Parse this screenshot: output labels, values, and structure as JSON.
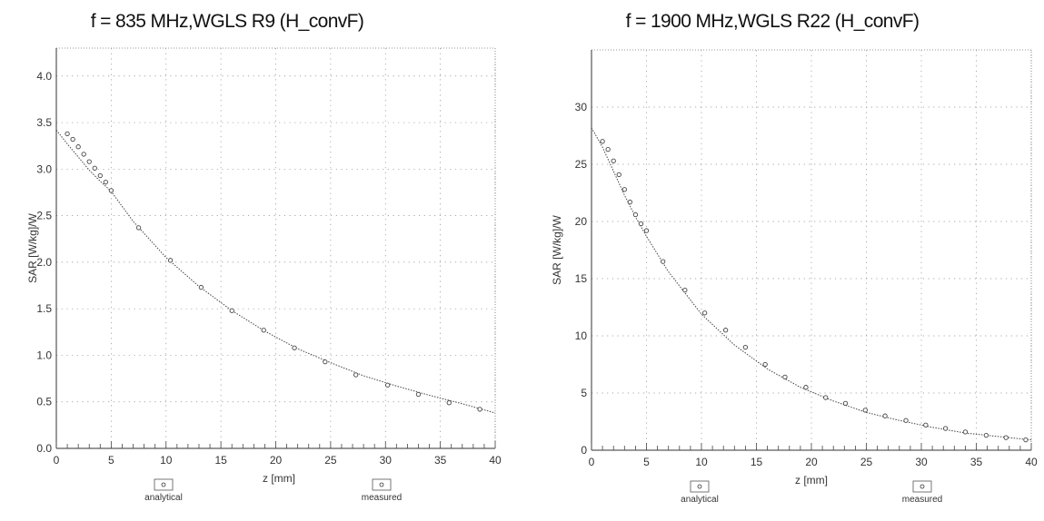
{
  "chart_data": [
    {
      "type": "line",
      "title": "f = 835 MHz,WGLS R9 (H_convF)",
      "xlabel": "z [mm]",
      "ylabel": "SAR [W/kg]/W",
      "xlim": [
        0,
        40
      ],
      "ylim": [
        0,
        4.3
      ],
      "xticks": [
        0,
        5,
        10,
        15,
        20,
        25,
        30,
        35,
        40
      ],
      "yticks": [
        0.0,
        0.5,
        1.0,
        1.5,
        2.0,
        2.5,
        3.0,
        3.5,
        4.0
      ],
      "ytick_labels": [
        "0.0",
        "0.5",
        "1.0",
        "1.5",
        "2.0",
        "2.5",
        "3.0",
        "3.5",
        "4.0"
      ],
      "xtick_labels": [
        "0",
        "5",
        "10",
        "15",
        "20",
        "25",
        "30",
        "35",
        "40"
      ],
      "grid": true,
      "series": [
        {
          "name": "analytical",
          "x": [
            0,
            1,
            2,
            3,
            4,
            5,
            7,
            10,
            13,
            16,
            19,
            22,
            25,
            28,
            31,
            34,
            37,
            40
          ],
          "values": [
            3.42,
            3.27,
            3.13,
            2.99,
            2.87,
            2.76,
            2.44,
            2.05,
            1.74,
            1.48,
            1.26,
            1.07,
            0.92,
            0.78,
            0.67,
            0.57,
            0.48,
            0.38
          ]
        },
        {
          "name": "measured",
          "x": [
            1.0,
            1.5,
            2.0,
            2.5,
            3.0,
            3.5,
            4.0,
            4.5,
            5.0,
            7.5,
            10.4,
            13.2,
            16.0,
            18.9,
            21.7,
            24.5,
            27.3,
            30.2,
            33.0,
            35.8,
            38.6
          ],
          "values": [
            3.38,
            3.32,
            3.24,
            3.16,
            3.08,
            3.01,
            2.93,
            2.86,
            2.77,
            2.37,
            2.02,
            1.73,
            1.48,
            1.27,
            1.08,
            0.93,
            0.79,
            0.68,
            0.58,
            0.49,
            0.42
          ]
        }
      ],
      "legend": {
        "placement": "bottom",
        "items": [
          "analytical",
          "measured"
        ]
      }
    },
    {
      "type": "line",
      "title": "f = 1900 MHz,WGLS R22 (H_convF)",
      "xlabel": "z [mm]",
      "ylabel": "SAR [W/kg]/W",
      "xlim": [
        0,
        40
      ],
      "ylim": [
        0,
        35
      ],
      "xticks": [
        0,
        5,
        10,
        15,
        20,
        25,
        30,
        35,
        40
      ],
      "yticks": [
        0,
        5,
        10,
        15,
        20,
        25,
        30
      ],
      "ytick_labels": [
        "0",
        "5",
        "10",
        "15",
        "20",
        "25",
        "30"
      ],
      "xtick_labels": [
        "0",
        "5",
        "10",
        "15",
        "20",
        "25",
        "30",
        "35",
        "40"
      ],
      "grid": true,
      "series": [
        {
          "name": "analytical",
          "x": [
            0,
            1,
            2,
            3,
            4,
            5,
            7,
            10,
            13,
            16,
            19,
            22,
            25,
            28,
            31,
            34,
            37,
            40
          ],
          "values": [
            28.2,
            26.5,
            24.4,
            22.3,
            20.4,
            18.7,
            15.6,
            11.9,
            9.2,
            7.1,
            5.5,
            4.3,
            3.3,
            2.6,
            2.0,
            1.5,
            1.2,
            0.9
          ]
        },
        {
          "name": "measured",
          "x": [
            1.0,
            1.5,
            2.0,
            2.5,
            3.0,
            3.5,
            4.0,
            4.5,
            5.0,
            6.5,
            8.5,
            10.3,
            12.2,
            14.0,
            15.8,
            17.6,
            19.5,
            21.3,
            23.1,
            24.9,
            26.7,
            28.6,
            30.4,
            32.2,
            34.0,
            35.9,
            37.7,
            39.5
          ],
          "values": [
            27.0,
            26.3,
            25.3,
            24.1,
            22.8,
            21.7,
            20.6,
            19.8,
            19.2,
            16.5,
            14.0,
            12.0,
            10.5,
            9.0,
            7.5,
            6.4,
            5.5,
            4.6,
            4.1,
            3.5,
            3.0,
            2.6,
            2.2,
            1.9,
            1.6,
            1.3,
            1.1,
            0.9
          ]
        }
      ],
      "legend": {
        "placement": "bottom",
        "items": [
          "analytical",
          "measured"
        ]
      }
    }
  ]
}
